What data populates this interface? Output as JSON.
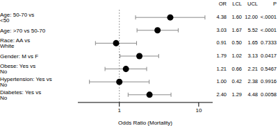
{
  "chart_data": {
    "type": "forest",
    "x_label": "Odds Ratio (Mortality)",
    "categories": [
      "Age: 50-70 vs <50",
      "Age: >70 vs 50-70",
      "Race: AA vs White",
      "Gender: M vs F",
      "Obese: Yes vs No",
      "Hypertension: Yes vs No",
      "Diabetes: Yes vs No"
    ],
    "values": [
      4.38,
      3.03,
      0.91,
      1.79,
      1.21,
      1.0,
      2.4
    ],
    "lower": [
      1.6,
      1.67,
      0.5,
      1.02,
      0.66,
      0.42,
      1.29
    ],
    "upper": [
      12.0,
      5.52,
      1.65,
      3.13,
      2.21,
      2.38,
      4.48
    ],
    "p_values": [
      "<.0001",
      "<.0001",
      "0.7333",
      "0.0417",
      "0.5467",
      "0.9916",
      "0.0058"
    ],
    "columns": [
      "OR",
      "LCL",
      "UCL",
      "P"
    ],
    "reference": 1,
    "log": "x",
    "xlim": [
      0.3,
      15
    ],
    "xticks": [
      1,
      10
    ],
    "color": "#000000",
    "marker": "circle"
  }
}
